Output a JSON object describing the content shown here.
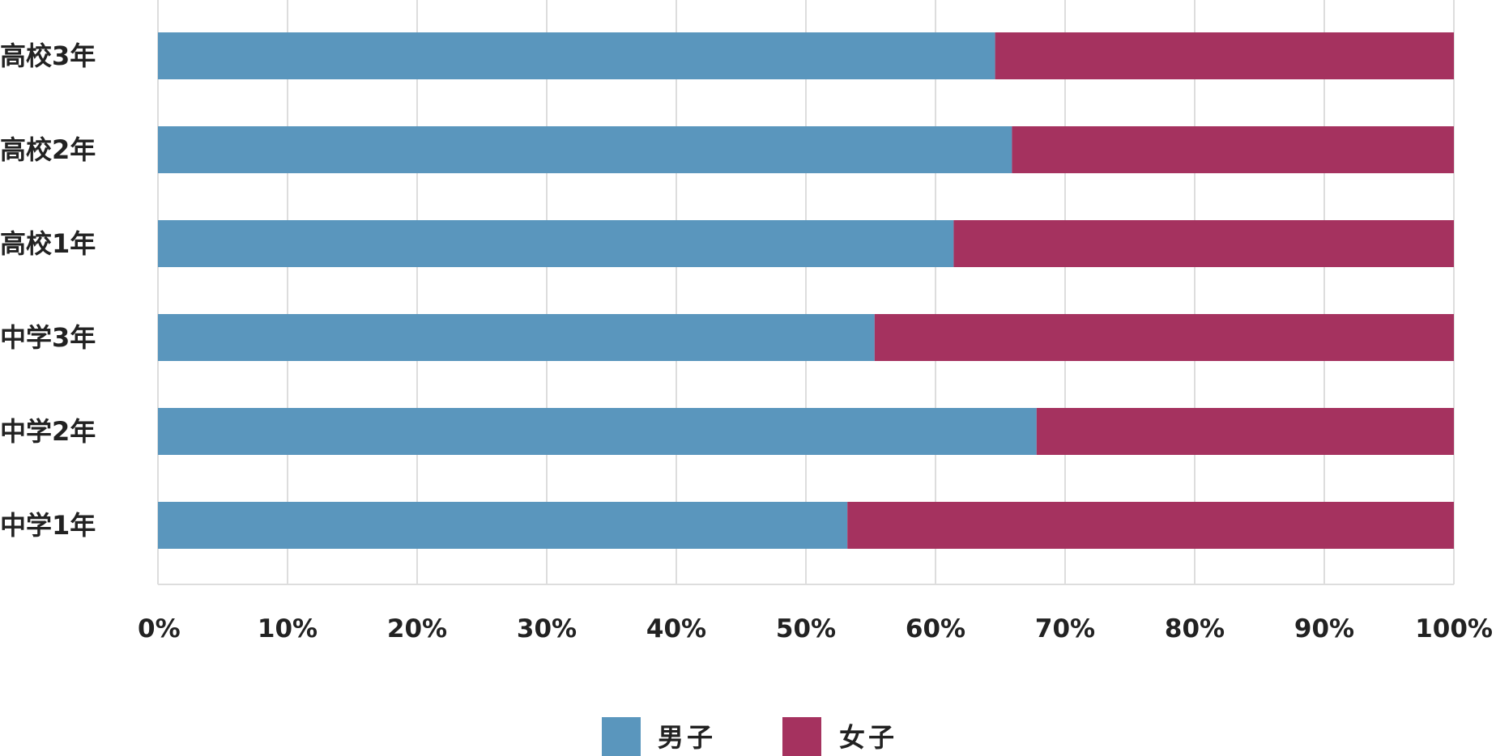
{
  "chart_data": {
    "type": "bar",
    "orientation": "horizontal",
    "stacked": true,
    "percent_stacked": true,
    "categories": [
      "高校3年",
      "高校2年",
      "高校1年",
      "中学3年",
      "中学2年",
      "中学1年"
    ],
    "series": [
      {
        "name": "男子",
        "color": "#5a96bd",
        "values": [
          64.6,
          65.9,
          61.4,
          55.3,
          67.8,
          53.2
        ]
      },
      {
        "name": "女子",
        "color": "#a5325f",
        "values": [
          35.4,
          34.1,
          38.6,
          44.7,
          32.2,
          46.8
        ]
      }
    ],
    "x_ticks": [
      "0%",
      "10%",
      "20%",
      "30%",
      "40%",
      "50%",
      "60%",
      "70%",
      "80%",
      "90%",
      "100%"
    ],
    "xlim": [
      0,
      100
    ],
    "title": "",
    "xlabel": "",
    "ylabel": "",
    "grid": "vertical",
    "legend_position": "bottom-center"
  },
  "colors": {
    "grid": "#dddddd",
    "text": "#222222",
    "background": "#ffffff"
  }
}
